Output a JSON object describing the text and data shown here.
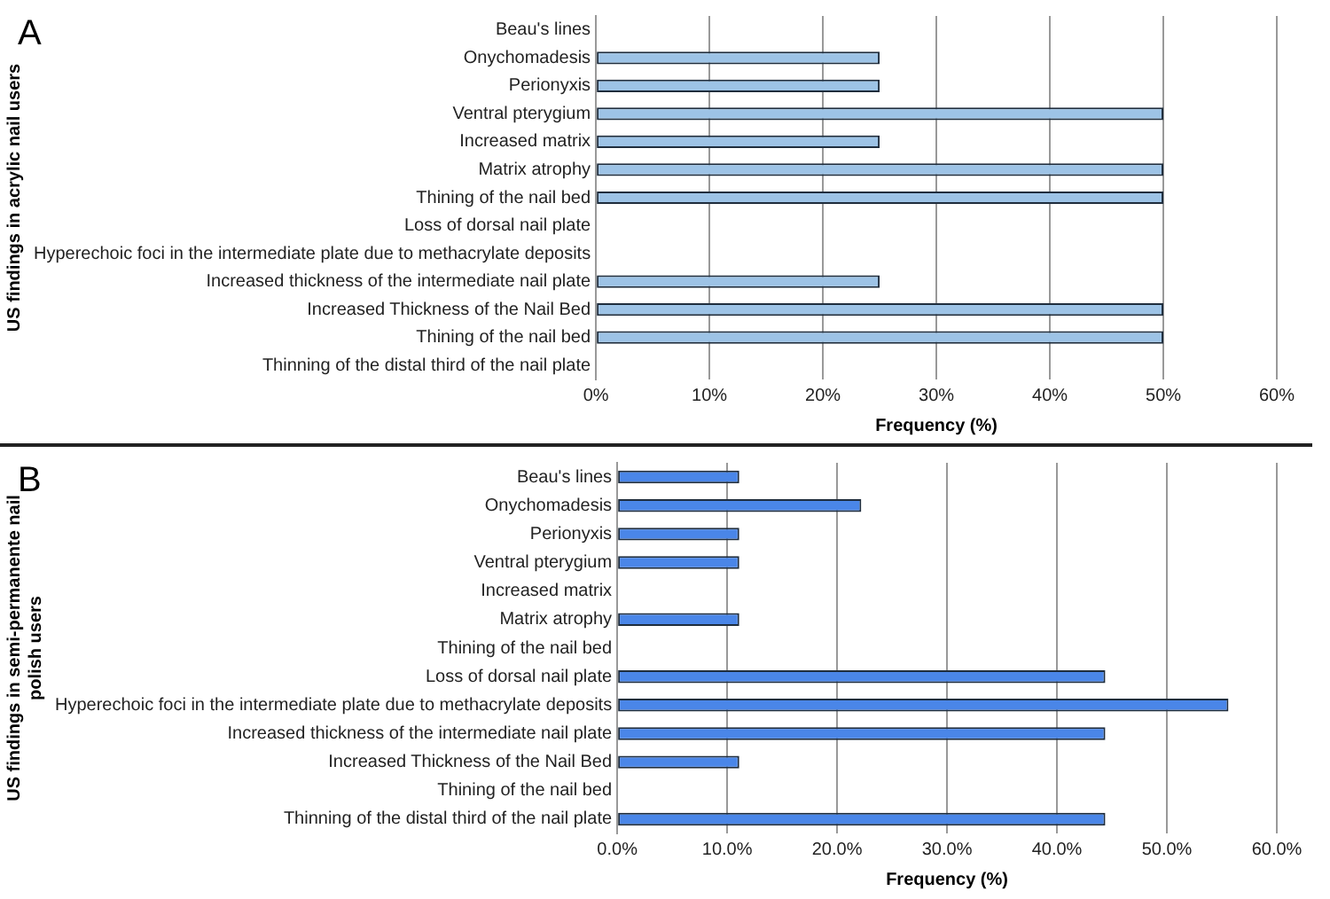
{
  "chart_data": [
    {
      "type": "bar",
      "orientation": "horizontal",
      "title": "A",
      "ylabel": "US findings in acrylic nail users",
      "xlabel": "Frequency (%)",
      "categories": [
        "Beau's lines",
        "Onychomadesis",
        "Perionyxis",
        "Ventral pterygium",
        "Increased matrix",
        "Matrix atrophy",
        "Thining of the nail bed",
        "Loss of dorsal nail plate",
        "Hyperechoic foci in the intermediate plate due to methacrylate deposits",
        "Increased thickness of the intermediate nail plate",
        "Increased Thickness of the Nail Bed",
        "Thining of the nail bed",
        "Thinning of the distal third of the nail plate"
      ],
      "values": [
        0,
        25,
        25,
        50,
        25,
        50,
        50,
        0,
        0,
        25,
        50,
        50,
        0
      ],
      "color": "#9dc3e6",
      "xlim": [
        0,
        60
      ],
      "xticks": [
        {
          "value": 0,
          "label": "0%"
        },
        {
          "value": 10,
          "label": "10%"
        },
        {
          "value": 20,
          "label": "20%"
        },
        {
          "value": 30,
          "label": "30%"
        },
        {
          "value": 40,
          "label": "40%"
        },
        {
          "value": 50,
          "label": "50%"
        },
        {
          "value": 60,
          "label": "60%"
        }
      ],
      "grid": "x",
      "legend": false
    },
    {
      "type": "bar",
      "orientation": "horizontal",
      "title": "B",
      "ylabel": "US findings in semi-permanente nail polish users",
      "xlabel": "Frequency (%)",
      "categories": [
        "Beau's lines",
        "Onychomadesis",
        "Perionyxis",
        "Ventral pterygium",
        "Increased matrix",
        "Matrix atrophy",
        "Thining of the nail bed",
        "Loss of dorsal nail plate",
        "Hyperechoic foci in the intermediate plate due to methacrylate deposits",
        "Increased thickness of the intermediate nail plate",
        "Increased Thickness of the Nail Bed",
        "Thining of the nail bed",
        "Thinning of the distal third of the nail plate"
      ],
      "values": [
        11.1,
        22.2,
        11.1,
        11.1,
        0,
        11.1,
        0,
        44.4,
        55.6,
        44.4,
        11.1,
        0,
        44.4
      ],
      "color": "#4a86e8",
      "xlim": [
        0,
        60
      ],
      "xticks": [
        {
          "value": 0,
          "label": "0.0%"
        },
        {
          "value": 10,
          "label": "10.0%"
        },
        {
          "value": 20,
          "label": "20.0%"
        },
        {
          "value": 30,
          "label": "30.0%"
        },
        {
          "value": 40,
          "label": "40.0%"
        },
        {
          "value": 50,
          "label": "50.0%"
        },
        {
          "value": 60,
          "label": "60.0%"
        }
      ],
      "grid": "x",
      "legend": false
    }
  ]
}
